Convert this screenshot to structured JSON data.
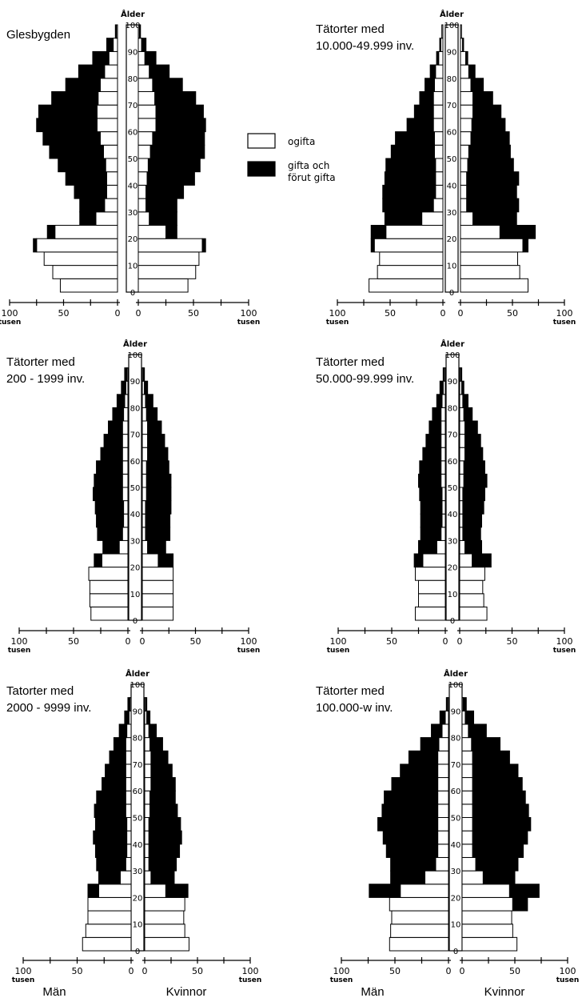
{
  "legend": {
    "unmarried": "ogifta",
    "married_line1": "gifta och",
    "married_line2": "förut gifta",
    "unmarried_color": "#ffffff",
    "married_color": "#000000"
  },
  "axis": {
    "age_label": "Ålder",
    "age_ticks": [
      "0",
      "10",
      "20",
      "30",
      "40",
      "50",
      "60",
      "70",
      "80",
      "90",
      "100"
    ],
    "x_ticks": [
      "100",
      "50",
      "0"
    ],
    "unit": "tusen",
    "men_label": "Män",
    "women_label": "Kvinnor"
  },
  "chart_data": [
    {
      "type": "bar",
      "subtype": "population-pyramid",
      "title_lines": [
        "Glesbygden"
      ],
      "age_groups": [
        "0-4",
        "5-9",
        "10-14",
        "15-19",
        "20-24",
        "25-29",
        "30-34",
        "35-39",
        "40-44",
        "45-49",
        "50-54",
        "55-59",
        "60-64",
        "65-69",
        "70-74",
        "75-79",
        "80-84",
        "85-89",
        "90-94",
        "95-99"
      ],
      "xlim": [
        0,
        100
      ],
      "ylim": [
        0,
        100
      ],
      "series": [
        {
          "name": "ogifta",
          "sex": "men",
          "values": [
            53,
            60,
            68,
            75,
            58,
            20,
            12,
            10,
            10,
            11,
            13,
            16,
            19,
            19,
            18,
            16,
            12,
            8,
            4,
            1
          ]
        },
        {
          "name": "gifta och förut gifta",
          "sex": "men",
          "values": [
            0,
            0,
            0,
            3,
            7,
            15,
            23,
            30,
            38,
            44,
            50,
            53,
            56,
            54,
            43,
            32,
            24,
            15,
            6,
            1
          ]
        },
        {
          "name": "ogifta",
          "sex": "women",
          "values": [
            45,
            52,
            55,
            58,
            25,
            10,
            7,
            7,
            8,
            9,
            11,
            13,
            16,
            16,
            15,
            13,
            10,
            6,
            3,
            1
          ]
        },
        {
          "name": "gifta och förut gifta",
          "sex": "women",
          "values": [
            0,
            0,
            0,
            3,
            10,
            25,
            28,
            34,
            43,
            47,
            49,
            47,
            45,
            43,
            37,
            27,
            18,
            10,
            4,
            1
          ]
        }
      ]
    },
    {
      "type": "bar",
      "subtype": "population-pyramid",
      "title_lines": [
        "Tätorter med",
        "10.000-49.999 inv."
      ],
      "age_groups": [
        "0-4",
        "5-9",
        "10-14",
        "15-19",
        "20-24",
        "25-29",
        "30-34",
        "35-39",
        "40-44",
        "45-49",
        "50-54",
        "55-59",
        "60-64",
        "65-69",
        "70-74",
        "75-79",
        "80-84",
        "85-89",
        "90-94",
        "95-99"
      ],
      "xlim": [
        0,
        100
      ],
      "ylim": [
        0,
        100
      ],
      "series": [
        {
          "name": "ogifta",
          "sex": "men",
          "values": [
            70,
            62,
            60,
            65,
            54,
            20,
            9,
            7,
            7,
            7,
            8,
            8,
            9,
            9,
            9,
            8,
            7,
            4,
            2,
            1
          ]
        },
        {
          "name": "gifta och förut gifta",
          "sex": "men",
          "values": [
            0,
            0,
            0,
            3,
            14,
            35,
            48,
            50,
            48,
            47,
            41,
            37,
            25,
            18,
            13,
            9,
            5,
            2,
            1,
            0
          ]
        },
        {
          "name": "ogifta",
          "sex": "women",
          "values": [
            65,
            57,
            55,
            60,
            38,
            12,
            6,
            6,
            6,
            7,
            8,
            10,
            11,
            12,
            12,
            10,
            8,
            5,
            2,
            1
          ]
        },
        {
          "name": "gifta och förut gifta",
          "sex": "women",
          "values": [
            0,
            0,
            0,
            5,
            34,
            42,
            50,
            48,
            50,
            44,
            40,
            37,
            32,
            27,
            19,
            12,
            6,
            2,
            1,
            0
          ]
        }
      ]
    },
    {
      "type": "bar",
      "subtype": "population-pyramid",
      "title_lines": [
        "Tätorter med",
        "200 - 1999 inv."
      ],
      "age_groups": [
        "0-4",
        "5-9",
        "10-14",
        "15-19",
        "20-24",
        "25-29",
        "30-34",
        "35-39",
        "40-44",
        "45-49",
        "50-54",
        "55-59",
        "60-64",
        "65-69",
        "70-74",
        "75-79",
        "80-84",
        "85-89",
        "90-94",
        "95-99"
      ],
      "xlim": [
        0,
        100
      ],
      "ylim": [
        0,
        100
      ],
      "series": [
        {
          "name": "ogifta",
          "sex": "men",
          "values": [
            34,
            35,
            35,
            36,
            24,
            8,
            5,
            4,
            4,
            5,
            5,
            5,
            5,
            5,
            5,
            4,
            3,
            2,
            1,
            0
          ]
        },
        {
          "name": "gifta och förut gifta",
          "sex": "men",
          "values": [
            0,
            0,
            0,
            0,
            7,
            15,
            23,
            25,
            26,
            27,
            26,
            24,
            20,
            17,
            13,
            10,
            7,
            4,
            2,
            0
          ]
        },
        {
          "name": "ogifta",
          "sex": "women",
          "values": [
            29,
            29,
            29,
            29,
            15,
            5,
            3,
            3,
            3,
            4,
            4,
            4,
            5,
            5,
            5,
            4,
            3,
            2,
            1,
            0
          ]
        },
        {
          "name": "gifta och förut gifta",
          "sex": "women",
          "values": [
            0,
            0,
            0,
            0,
            14,
            17,
            23,
            23,
            24,
            23,
            23,
            21,
            19,
            16,
            13,
            10,
            7,
            3,
            1,
            0
          ]
        }
      ]
    },
    {
      "type": "bar",
      "subtype": "population-pyramid",
      "title_lines": [
        "Tätorter med",
        "50.000-99.999 inv."
      ],
      "age_groups": [
        "0-4",
        "5-9",
        "10-14",
        "15-19",
        "20-24",
        "25-29",
        "30-34",
        "35-39",
        "40-44",
        "45-49",
        "50-54",
        "55-59",
        "60-64",
        "65-69",
        "70-74",
        "75-79",
        "80-84",
        "85-89",
        "90-94",
        "95-99"
      ],
      "xlim": [
        0,
        100
      ],
      "ylim": [
        0,
        100
      ],
      "series": [
        {
          "name": "ogifta",
          "sex": "men",
          "values": [
            28,
            25,
            25,
            28,
            21,
            8,
            4,
            3,
            3,
            3,
            4,
            4,
            4,
            4,
            4,
            4,
            3,
            2,
            1,
            0
          ]
        },
        {
          "name": "gifta och förut gifta",
          "sex": "men",
          "values": [
            0,
            0,
            0,
            0,
            8,
            17,
            19,
            20,
            20,
            21,
            21,
            20,
            17,
            14,
            11,
            8,
            5,
            3,
            1,
            0
          ]
        },
        {
          "name": "ogifta",
          "sex": "women",
          "values": [
            26,
            23,
            22,
            24,
            12,
            5,
            3,
            3,
            3,
            3,
            4,
            4,
            5,
            5,
            5,
            4,
            3,
            2,
            1,
            0
          ]
        },
        {
          "name": "gifta och förut gifta",
          "sex": "women",
          "values": [
            0,
            0,
            0,
            0,
            18,
            16,
            17,
            18,
            20,
            21,
            22,
            20,
            17,
            15,
            12,
            8,
            5,
            2,
            1,
            0
          ]
        }
      ]
    },
    {
      "type": "bar",
      "subtype": "population-pyramid",
      "title_lines": [
        "Tatorter med",
        "2000 - 9999 inv."
      ],
      "age_groups": [
        "0-4",
        "5-9",
        "10-14",
        "15-19",
        "20-24",
        "25-29",
        "30-34",
        "35-39",
        "40-44",
        "45-49",
        "50-54",
        "55-59",
        "60-64",
        "65-69",
        "70-74",
        "75-79",
        "80-84",
        "85-89",
        "90-94",
        "95-99"
      ],
      "xlim": [
        0,
        100
      ],
      "ylim": [
        0,
        100
      ],
      "series": [
        {
          "name": "ogifta",
          "sex": "men",
          "values": [
            45,
            42,
            40,
            40,
            30,
            10,
            5,
            4,
            4,
            4,
            5,
            5,
            5,
            5,
            5,
            5,
            4,
            2,
            1,
            0
          ]
        },
        {
          "name": "gifta och förut gifta",
          "sex": "men",
          "values": [
            0,
            0,
            0,
            0,
            10,
            20,
            27,
            29,
            31,
            29,
            29,
            27,
            22,
            19,
            15,
            11,
            7,
            4,
            2,
            0
          ]
        },
        {
          "name": "ogifta",
          "sex": "women",
          "values": [
            42,
            38,
            37,
            38,
            20,
            6,
            4,
            4,
            4,
            4,
            5,
            5,
            6,
            6,
            6,
            5,
            4,
            2,
            1,
            0
          ]
        },
        {
          "name": "gifta och förut gifta",
          "sex": "women",
          "values": [
            0,
            0,
            0,
            0,
            21,
            22,
            26,
            29,
            31,
            30,
            26,
            24,
            23,
            20,
            16,
            12,
            7,
            3,
            1,
            0
          ]
        }
      ]
    },
    {
      "type": "bar",
      "subtype": "population-pyramid",
      "title_lines": [
        "Tätorter med",
        "100.000-w inv."
      ],
      "age_groups": [
        "0-4",
        "5-9",
        "10-14",
        "15-19",
        "20-24",
        "25-29",
        "30-34",
        "35-39",
        "40-44",
        "45-49",
        "50-54",
        "55-59",
        "60-64",
        "65-69",
        "70-74",
        "75-79",
        "80-84",
        "85-89",
        "90-94",
        "95-99"
      ],
      "xlim": [
        0,
        100
      ],
      "ylim": [
        0,
        100
      ],
      "series": [
        {
          "name": "ogifta",
          "sex": "men",
          "values": [
            55,
            54,
            53,
            55,
            45,
            22,
            12,
            10,
            10,
            10,
            10,
            10,
            10,
            10,
            10,
            9,
            6,
            3,
            1,
            0
          ]
        },
        {
          "name": "gifta och förut gifta",
          "sex": "men",
          "values": [
            0,
            0,
            0,
            0,
            29,
            32,
            42,
            48,
            51,
            56,
            52,
            50,
            43,
            35,
            27,
            17,
            10,
            5,
            1,
            0
          ]
        },
        {
          "name": "ogifta",
          "sex": "women",
          "values": [
            52,
            48,
            47,
            48,
            45,
            20,
            13,
            10,
            10,
            10,
            10,
            10,
            10,
            10,
            10,
            9,
            6,
            3,
            1,
            0
          ]
        },
        {
          "name": "gifta och förut gifta",
          "sex": "women",
          "values": [
            0,
            0,
            0,
            14,
            28,
            30,
            40,
            48,
            52,
            55,
            53,
            50,
            47,
            43,
            35,
            27,
            17,
            8,
            3,
            0
          ]
        }
      ]
    }
  ]
}
